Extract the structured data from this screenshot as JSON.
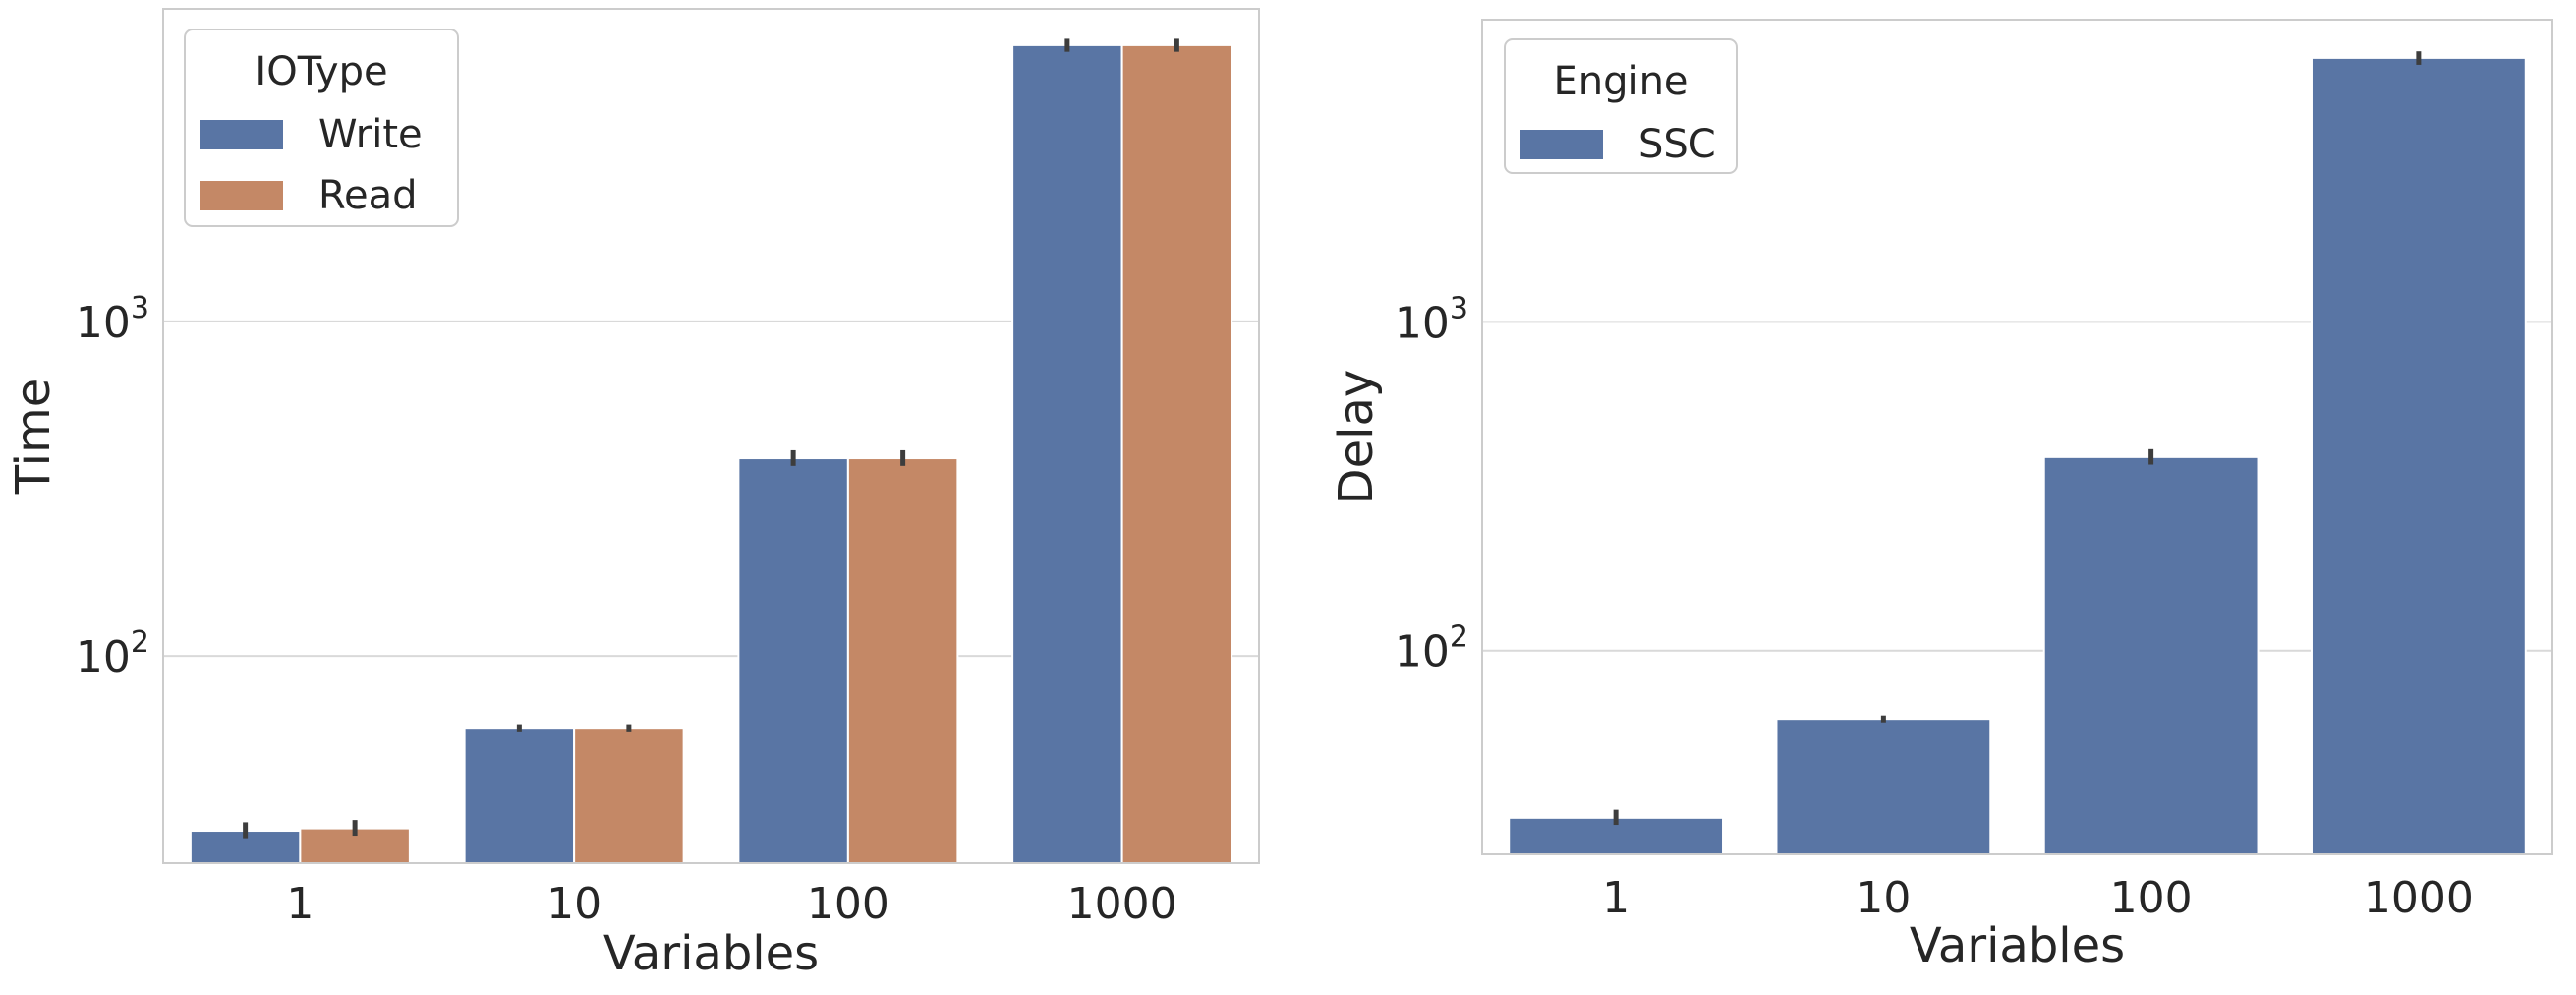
{
  "chart_data": [
    {
      "type": "bar",
      "xlabel": "Variables",
      "ylabel": "Time",
      "categories": [
        "1",
        "10",
        "100",
        "1000"
      ],
      "y_scale": "log",
      "ylim": [
        24,
        8600
      ],
      "y_ticks": [
        {
          "value": 100,
          "base": "10",
          "exp": "2"
        },
        {
          "value": 1000,
          "base": "10",
          "exp": "3"
        }
      ],
      "grid": "horizontal",
      "legend": {
        "title": "IOType",
        "placement": "top-left"
      },
      "series": [
        {
          "name": "Write",
          "color": "#5975a4",
          "values": [
            30,
            61,
            390,
            6700
          ],
          "err_low": [
            28.5,
            59.5,
            370,
            6400
          ],
          "err_high": [
            31.8,
            62.5,
            412,
            7000
          ]
        },
        {
          "name": "Read",
          "color": "#c48866",
          "values": [
            30.5,
            61,
            390,
            6700
          ],
          "err_low": [
            29,
            59.5,
            370,
            6400
          ],
          "err_high": [
            32.3,
            62.5,
            412,
            7000
          ]
        }
      ]
    },
    {
      "type": "bar",
      "xlabel": "Variables",
      "ylabel": "Delay",
      "categories": [
        "1",
        "10",
        "100",
        "1000"
      ],
      "y_scale": "log",
      "ylim": [
        24,
        8300
      ],
      "y_ticks": [
        {
          "value": 100,
          "base": "10",
          "exp": "2"
        },
        {
          "value": 1000,
          "base": "10",
          "exp": "3"
        }
      ],
      "grid": "horizontal",
      "legend": {
        "title": "Engine",
        "placement": "top-left"
      },
      "series": [
        {
          "name": "SSC",
          "color": "#5975a4",
          "values": [
            31,
            62,
            388,
            6350
          ],
          "err_low": [
            29.5,
            60.5,
            368,
            6050
          ],
          "err_high": [
            32.8,
            63.5,
            410,
            6650
          ]
        }
      ]
    }
  ]
}
